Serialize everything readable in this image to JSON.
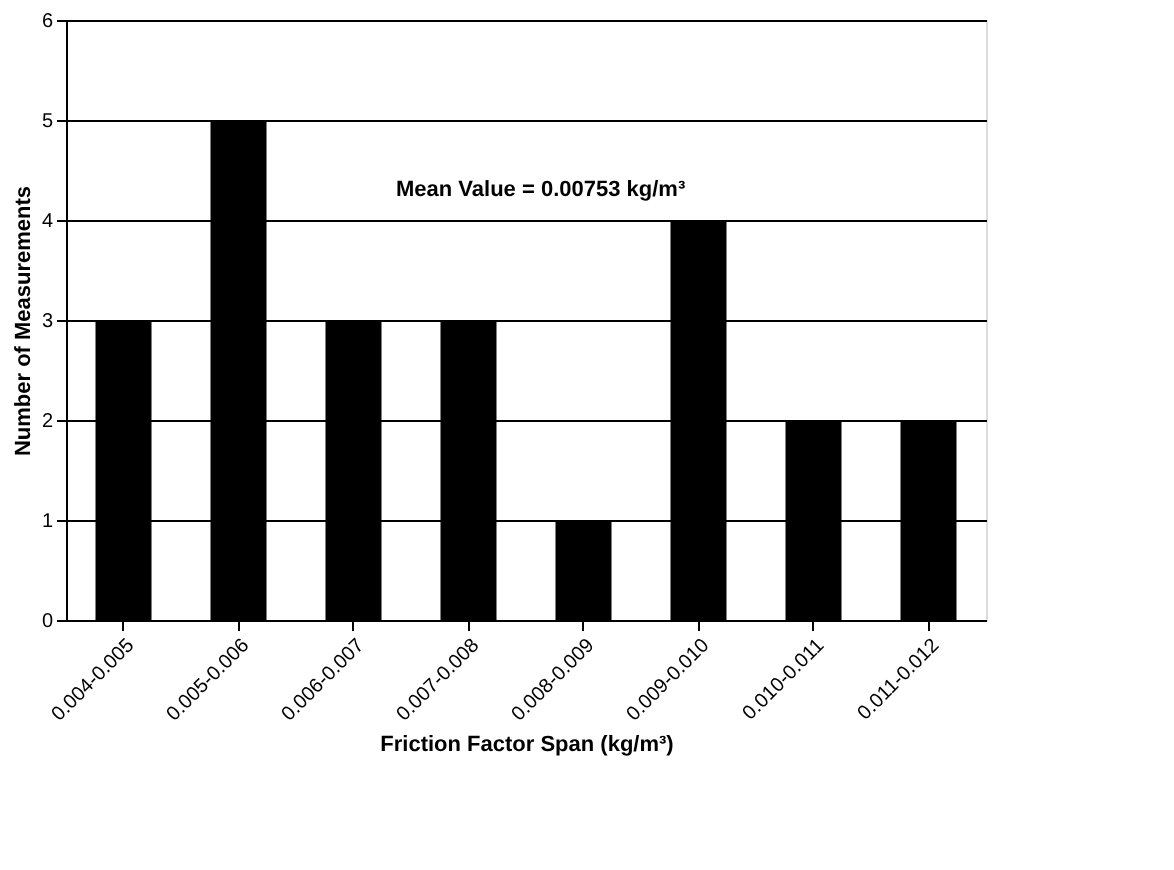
{
  "chart_data": {
    "type": "bar",
    "xlabel": "Friction Factor Span (kg/m³)",
    "ylabel": "Number of Measurements",
    "categories": [
      "0.004-0.005",
      "0.005-0.006",
      "0.006-0.007",
      "0.007-0.008",
      "0.008-0.009",
      "0.009-0.010",
      "0.010-0.011",
      "0.011-0.012"
    ],
    "values": [
      3,
      5,
      3,
      3,
      1,
      4,
      2,
      2
    ],
    "color": "#000000",
    "ylim": [
      0,
      6
    ],
    "yticks": [
      0,
      1,
      2,
      3,
      4,
      5,
      6
    ],
    "grid": "y",
    "annotations": [
      "Mean Value = 0.00753 kg/m³"
    ]
  }
}
